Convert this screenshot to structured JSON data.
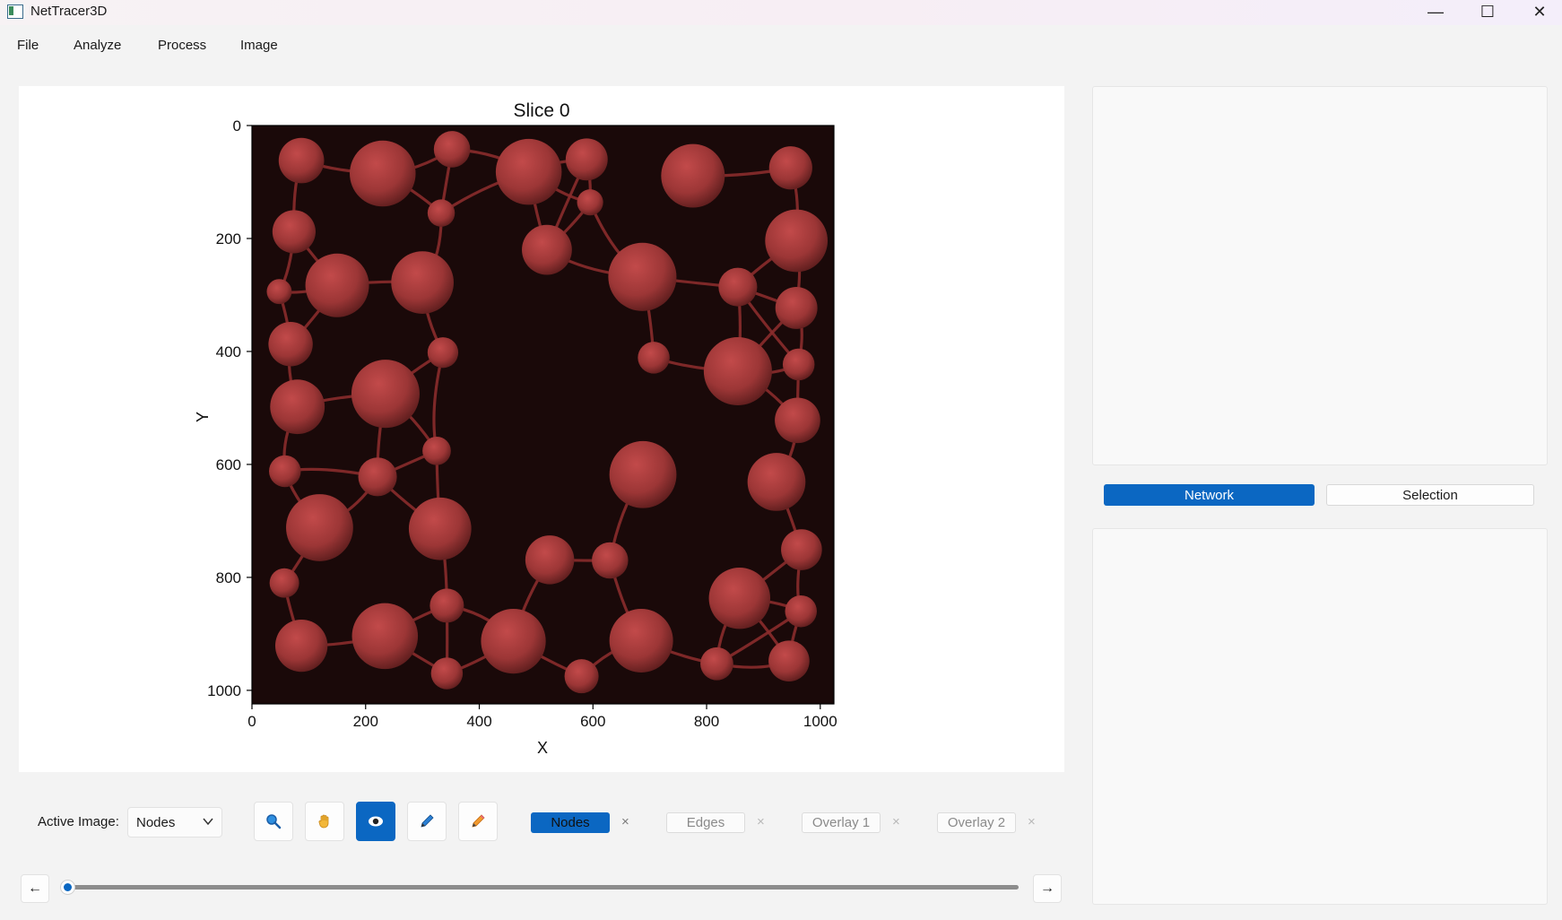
{
  "window": {
    "title": "NetTracer3D",
    "minimize": "—",
    "maximize": "☐",
    "close": "✕"
  },
  "menu": {
    "items": [
      "File",
      "Analyze",
      "Process",
      "Image"
    ]
  },
  "plot": {
    "title": "Slice 0",
    "xlabel": "X",
    "ylabel": "Y",
    "xticks": [
      "0",
      "200",
      "400",
      "600",
      "800",
      "1000"
    ],
    "yticks": [
      "0",
      "200",
      "400",
      "600",
      "800",
      "1000"
    ],
    "xlim": [
      0,
      1024
    ],
    "ylim": [
      1024,
      0
    ],
    "node_color": "#9c3636",
    "edge_color": "#8a2c2c",
    "background_color": "#1a0909"
  },
  "right_panel": {
    "tabs": [
      "Network",
      "Selection"
    ],
    "active_tab": "Network"
  },
  "toolbar": {
    "active_image_label": "Active Image:",
    "active_image_value": "Nodes",
    "tools": [
      "zoom-icon",
      "pan-hand-icon",
      "eye-icon",
      "pen-icon",
      "highlighter-icon"
    ],
    "active_tool": "eye-icon",
    "layers": [
      {
        "label": "Nodes",
        "enabled": true,
        "close": "×"
      },
      {
        "label": "Edges",
        "enabled": false,
        "close": "×"
      },
      {
        "label": "Overlay 1",
        "enabled": false,
        "close": "×"
      },
      {
        "label": "Overlay 2",
        "enabled": false,
        "close": "×"
      }
    ]
  },
  "slider": {
    "left_arrow": "←",
    "right_arrow": "→",
    "value": 0
  },
  "colors": {
    "accent": "#0b67c2"
  }
}
